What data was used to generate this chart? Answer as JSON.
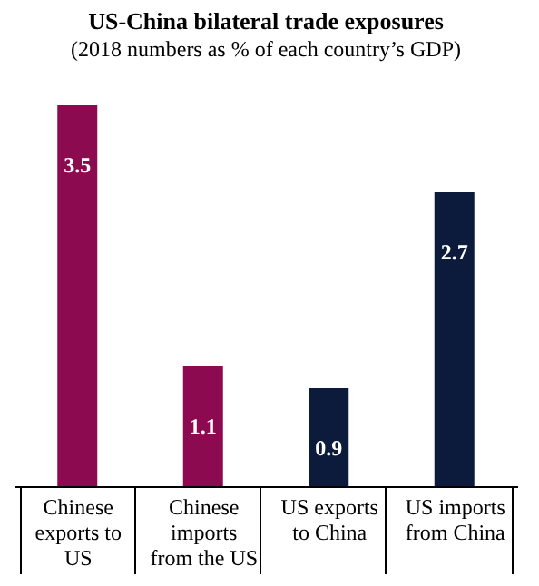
{
  "chart_data": {
    "type": "bar",
    "title": "US-China bilateral trade exposures",
    "subtitle": "(2018 numbers as % of each country’s GDP)",
    "categories": [
      "Chinese exports to US",
      "Chinese imports from the US",
      "US exports to China",
      "US imports from China"
    ],
    "values": [
      3.5,
      1.1,
      0.9,
      2.7
    ],
    "colors": [
      "#8b0a50",
      "#8b0a50",
      "#0c1a3c",
      "#0c1a3c"
    ],
    "data_labels": true,
    "grid": false
  }
}
